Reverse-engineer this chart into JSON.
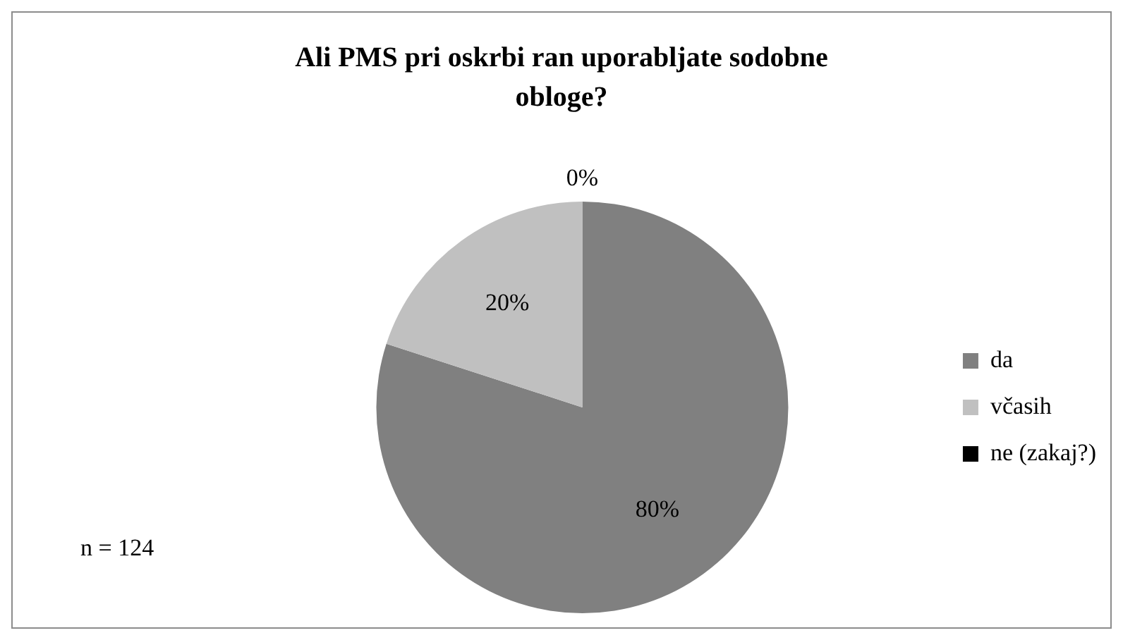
{
  "chart_data": {
    "type": "pie",
    "title": "Ali PMS pri oskrbi ran uporabljate sodobne obloge?",
    "categories": [
      "da",
      "včasih",
      "ne (zakaj?)"
    ],
    "values": [
      80,
      20,
      0
    ],
    "colors": [
      "#808080",
      "#c0c0c0",
      "#000000"
    ],
    "value_labels": [
      "80%",
      "20%",
      "0%"
    ],
    "legend": "right",
    "annotations": [
      "n = 124"
    ]
  }
}
